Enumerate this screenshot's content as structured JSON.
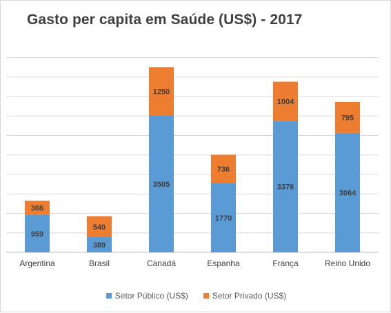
{
  "chart_data": {
    "type": "bar",
    "stacked": true,
    "title": "Gasto per capita em Saúde (US$) - 2017",
    "categories": [
      "Argentina",
      "Brasil",
      "Canadá",
      "Espanha",
      "França",
      "Reino Unido"
    ],
    "series": [
      {
        "name": "Setor Público (US$)",
        "color": "#5b9bd5",
        "values": [
          959,
          389,
          3505,
          1770,
          3376,
          3064
        ]
      },
      {
        "name": "Setor Privado (US$)",
        "color": "#ed7d31",
        "values": [
          366,
          540,
          1250,
          736,
          1004,
          795
        ]
      }
    ],
    "ylim": [
      0,
      5200
    ],
    "grid": true,
    "y_axis_labels": false,
    "legend_position": "bottom"
  }
}
